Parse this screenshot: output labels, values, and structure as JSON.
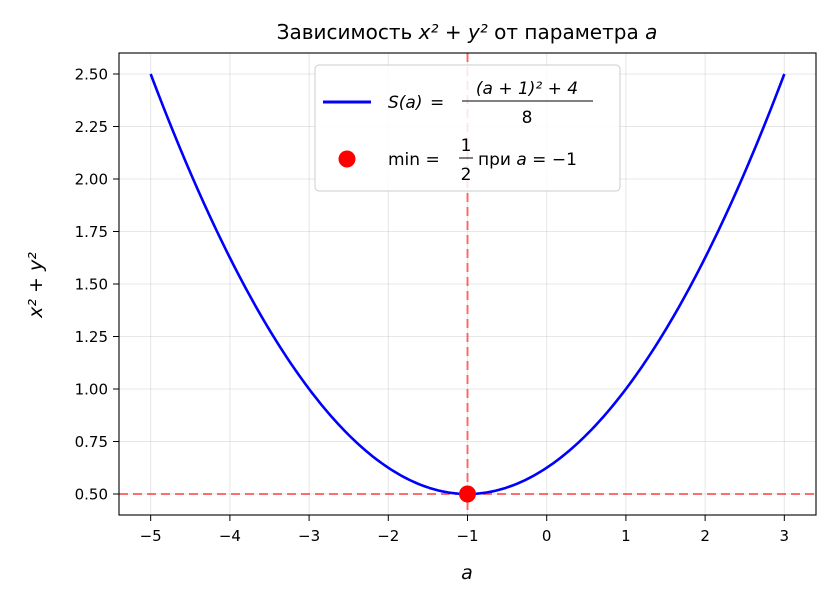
{
  "chart_data": {
    "type": "line",
    "title": {
      "prefix": "Зависимость ",
      "math": "x² + y²",
      "middle": " от параметра ",
      "param": "a"
    },
    "xlabel": "a",
    "ylabel": "x² + y²",
    "xlim": [
      -5.4,
      3.4
    ],
    "ylim": [
      0.4,
      2.6
    ],
    "x_ticks": [
      -5,
      -4,
      -3,
      -2,
      -1,
      0,
      1,
      2,
      3
    ],
    "x_tick_labels": [
      "−5",
      "−4",
      "−3",
      "−2",
      "−1",
      "0",
      "1",
      "2",
      "3"
    ],
    "y_ticks": [
      0.5,
      0.75,
      1.0,
      1.25,
      1.5,
      1.75,
      2.0,
      2.25,
      2.5
    ],
    "y_tick_labels": [
      "0.50",
      "0.75",
      "1.00",
      "1.25",
      "1.50",
      "1.75",
      "2.00",
      "2.25",
      "2.50"
    ],
    "grid": true,
    "series": [
      {
        "name": "S(a) = ((a + 1)² + 4) / 8",
        "formula": "((a+1)^2+4)/8",
        "x": [
          -5,
          -4.5,
          -4,
          -3.5,
          -3,
          -2.5,
          -2,
          -1.5,
          -1,
          -0.5,
          0,
          0.5,
          1,
          1.5,
          2,
          2.5,
          3
        ],
        "y": [
          2.5,
          2.03125,
          1.625,
          1.28125,
          1.0,
          0.78125,
          0.625,
          0.53125,
          0.5,
          0.53125,
          0.625,
          0.78125,
          1.0,
          1.28125,
          1.625,
          2.03125,
          2.5
        ],
        "color": "#0000ff"
      }
    ],
    "points": [
      {
        "name": "min = 1/2 при a = −1",
        "x": -1,
        "y": 0.5,
        "color": "#ff0000"
      }
    ],
    "reference_lines": [
      {
        "orientation": "vertical",
        "value": -1,
        "color": "#ff0000",
        "style": "dashed"
      },
      {
        "orientation": "horizontal",
        "value": 0.5,
        "color": "#ff0000",
        "style": "dashed"
      }
    ],
    "legend": {
      "placement": "upper-center",
      "entries": [
        {
          "lhs": "S(a)",
          "numerator": "(a + 1)² + 4",
          "denominator": "8"
        },
        {
          "prefix": "min = ",
          "numerator": "1",
          "denominator": "2",
          "suffix": " при ",
          "var": "a",
          "tail": " = −1"
        }
      ]
    }
  }
}
